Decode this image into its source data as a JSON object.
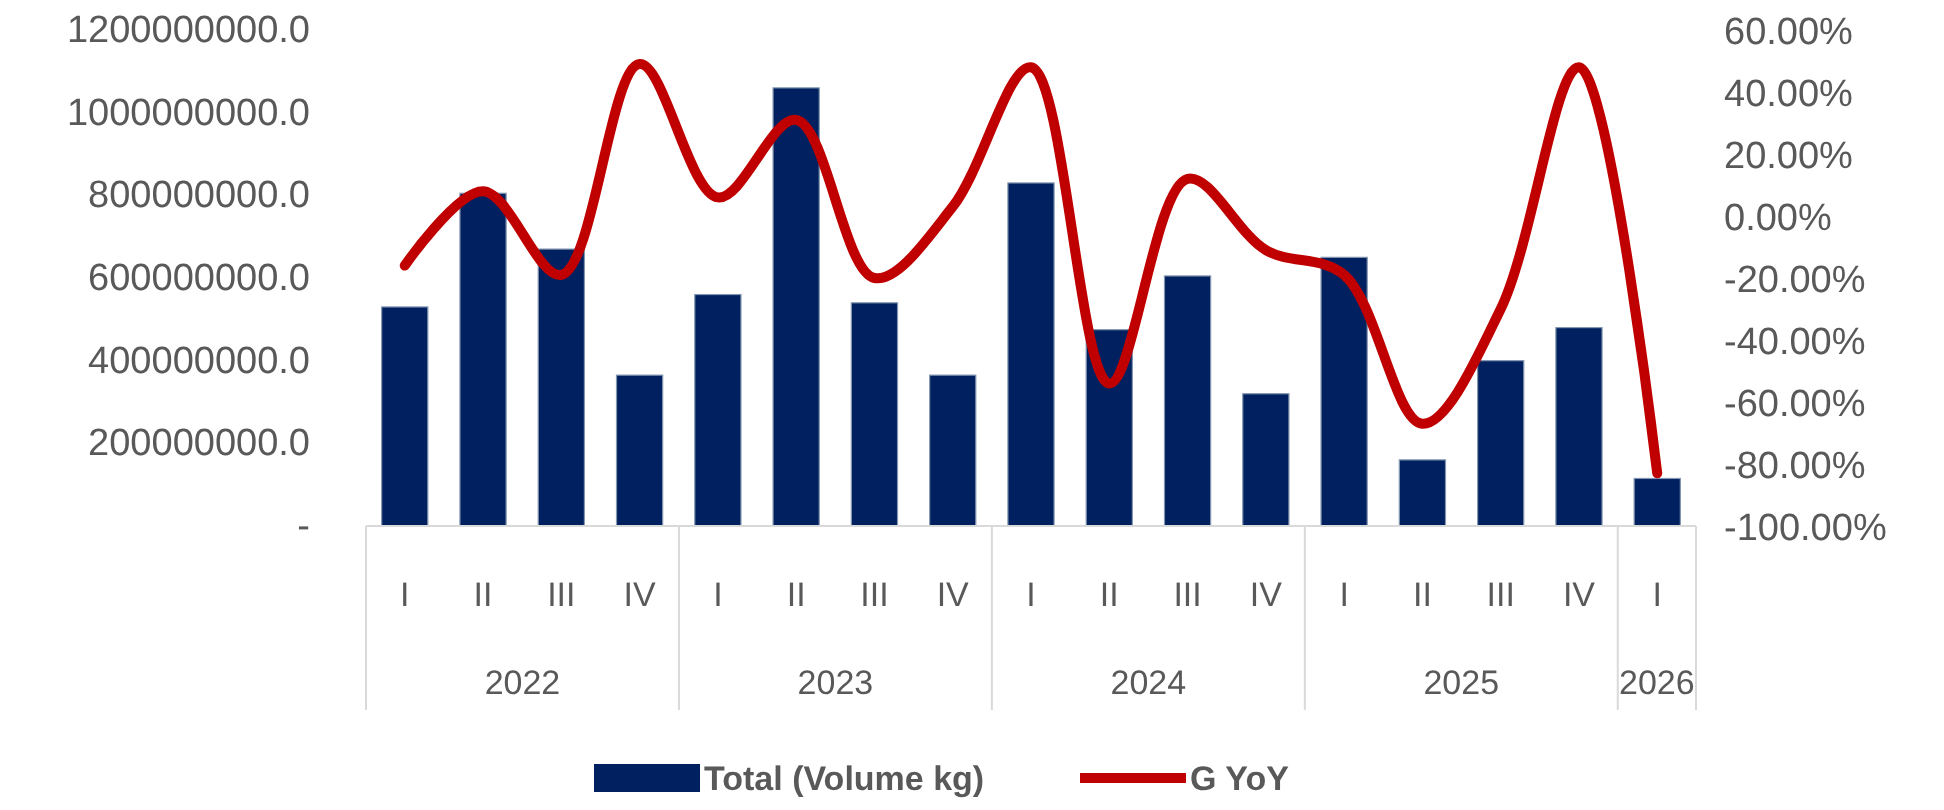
{
  "chart_data": {
    "type": "bar",
    "categories": [
      "I",
      "II",
      "III",
      "IV",
      "I",
      "II",
      "III",
      "IV",
      "I",
      "II",
      "III",
      "IV",
      "I",
      "II",
      "III",
      "IV",
      "I"
    ],
    "series": [
      {
        "name": "Total (Volume kg)",
        "color": "#002060",
        "values": [
          530000000,
          805000000,
          670000000,
          365000000,
          560000000,
          1060000000,
          540000000,
          365000000,
          830000000,
          475000000,
          605000000,
          320000000,
          650000000,
          160000000,
          400000000,
          480000000,
          115000000
        ]
      },
      {
        "name": "G YoY",
        "type": "line",
        "axis": "y2",
        "color": "#c00000",
        "values": [
          -16,
          8,
          -19,
          49,
          6,
          31,
          -20,
          3,
          48,
          -54,
          12,
          -11,
          -19,
          -67,
          -30,
          48,
          -83
        ]
      }
    ],
    "annotations": [
      "2022",
      "2023",
      "2024",
      "2025",
      "2026"
    ],
    "ylim": [
      0,
      1200000000
    ],
    "yticks": [
      {
        "value": 0,
        "label": "-"
      },
      {
        "value": 200000000,
        "label": "200000000.0"
      },
      {
        "value": 400000000,
        "label": "400000000.0"
      },
      {
        "value": 600000000,
        "label": "600000000.0"
      },
      {
        "value": 800000000,
        "label": "800000000.0"
      },
      {
        "value": 1000000000,
        "label": "1000000000.0"
      },
      {
        "value": 1200000000,
        "label": "1200000000.0"
      }
    ],
    "y2lim": [
      -100,
      60
    ],
    "y2ticks": [
      {
        "value": -100,
        "label": "-100.00%"
      },
      {
        "value": -80,
        "label": "-80.00%"
      },
      {
        "value": -60,
        "label": "-60.00%"
      },
      {
        "value": -40,
        "label": "-40.00%"
      },
      {
        "value": -20,
        "label": "-20.00%"
      },
      {
        "value": 0,
        "label": "0.00%"
      },
      {
        "value": 20,
        "label": "20.00%"
      },
      {
        "value": 40,
        "label": "40.00%"
      },
      {
        "value": 60,
        "label": "60.00%"
      }
    ],
    "legend": "bottom",
    "grid": false,
    "marker": "none",
    "line_style": "solid"
  }
}
